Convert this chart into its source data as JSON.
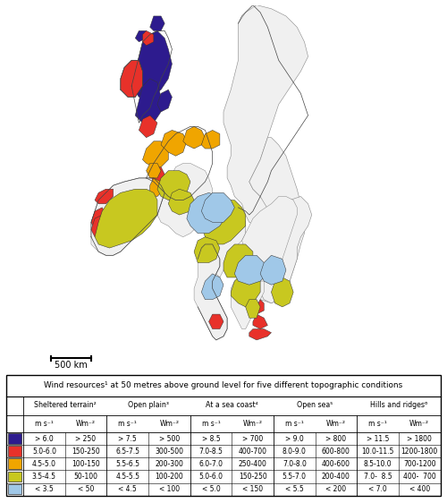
{
  "legend_title": "Wind resources¹ at 50 metres above ground level for five different topographic conditions",
  "colors": [
    "#2d1b8e",
    "#e8312a",
    "#f0a500",
    "#c8c820",
    "#a0c8e8"
  ],
  "columns": [
    {
      "header": "Sheltered terrain²",
      "sub": [
        "m s⁻¹",
        "Wm⁻²"
      ],
      "rows": [
        [
          "> 6.0",
          "> 250"
        ],
        [
          "5.0-6.0",
          "150-250"
        ],
        [
          "4.5-5.0",
          "100-150"
        ],
        [
          "3.5-4.5",
          "50-100"
        ],
        [
          "< 3.5",
          "< 50"
        ]
      ]
    },
    {
      "header": "Open plain³",
      "sub": [
        "m s⁻¹",
        "Wm⁻²"
      ],
      "rows": [
        [
          "> 7.5",
          "> 500"
        ],
        [
          "6.5-7.5",
          "300-500"
        ],
        [
          "5.5-6.5",
          "200-300"
        ],
        [
          "4.5-5.5",
          "100-200"
        ],
        [
          "< 4.5",
          "< 100"
        ]
      ]
    },
    {
      "header": "At a sea coast⁴",
      "sub": [
        "m s⁻¹",
        "Wm⁻²"
      ],
      "rows": [
        [
          "> 8.5",
          "> 700"
        ],
        [
          "7.0-8.5",
          "400-700"
        ],
        [
          "6.0-7.0",
          "250-400"
        ],
        [
          "5.0-6.0",
          "150-250"
        ],
        [
          "< 5.0",
          "< 150"
        ]
      ]
    },
    {
      "header": "Open sea⁵",
      "sub": [
        "m s⁻¹",
        "Wm⁻²"
      ],
      "rows": [
        [
          "> 9.0",
          "> 800"
        ],
        [
          "8.0-9.0",
          "600-800"
        ],
        [
          "7.0-8.0",
          "400-600"
        ],
        [
          "5.5-7.0",
          "200-400"
        ],
        [
          "< 5.5",
          "< 200"
        ]
      ]
    },
    {
      "header": "Hills and ridges⁶",
      "sub": [
        "m s⁻¹",
        "Wm⁻²"
      ],
      "rows": [
        [
          "> 11.5",
          "> 1800"
        ],
        [
          "10.0-11.5",
          "1200-1800"
        ],
        [
          "8.5-10.0",
          "700-1200"
        ],
        [
          "7.0-  8.5",
          "400-  700"
        ],
        [
          "< 7.0",
          "< 400"
        ]
      ]
    }
  ],
  "scale_text": "500 km",
  "map_border_color": "#555555",
  "fig_width": 5.0,
  "fig_height": 5.62,
  "dpi": 100,
  "map_bg": "#ffffff",
  "sea_color": "#ffffff"
}
